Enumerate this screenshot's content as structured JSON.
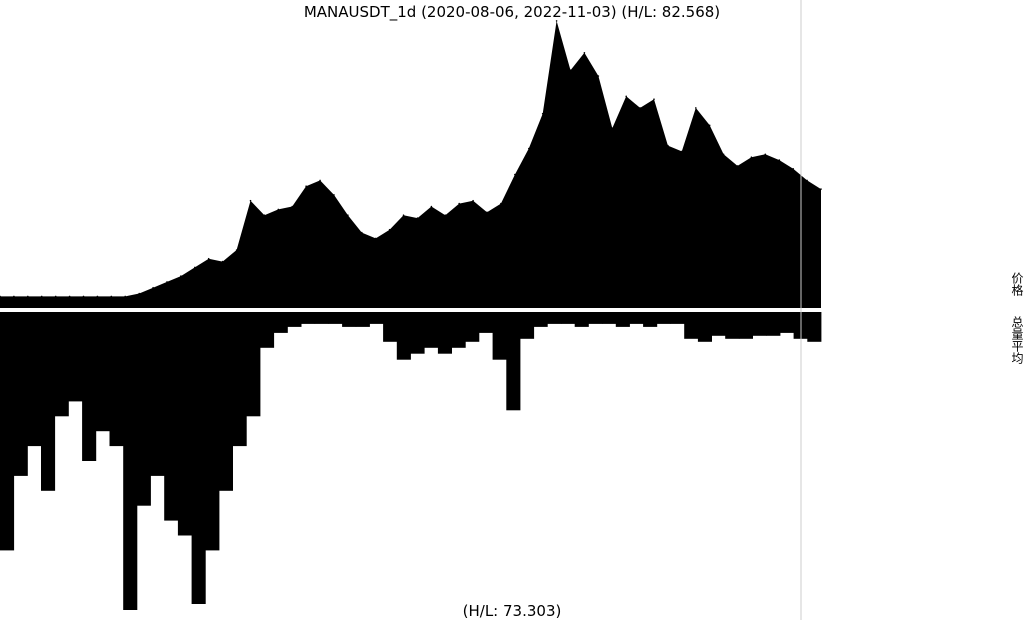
{
  "chart_data": [
    {
      "type": "area",
      "title": "MANAUSDT_1d (2020-08-06, 2022-11-03) (H/L: 82.568)",
      "x_range": [
        "2020-08-06",
        "2022-11-03"
      ],
      "xlabel": "",
      "ylabel": "",
      "grid": false,
      "legend": "none",
      "colors": {
        "fill": "#000000",
        "background": "#ffffff",
        "divider": "#cccccc"
      },
      "series": [
        {
          "values": [
            0.04,
            0.04,
            0.04,
            0.04,
            0.04,
            0.04,
            0.04,
            0.04,
            0.04,
            0.04,
            0.05,
            0.07,
            0.09,
            0.11,
            0.14,
            0.17,
            0.16,
            0.2,
            0.37,
            0.32,
            0.34,
            0.35,
            0.42,
            0.44,
            0.39,
            0.32,
            0.26,
            0.24,
            0.27,
            0.32,
            0.31,
            0.35,
            0.32,
            0.36,
            0.37,
            0.33,
            0.36,
            0.46,
            0.55,
            0.67,
            0.99,
            0.82,
            0.88,
            0.8,
            0.62,
            0.73,
            0.69,
            0.72,
            0.56,
            0.54,
            0.69,
            0.63,
            0.53,
            0.49,
            0.52,
            0.53,
            0.51,
            0.48,
            0.44,
            0.41
          ]
        }
      ]
    },
    {
      "type": "bar",
      "title": "(H/L: 73.303)",
      "xlabel": "",
      "ylabel": "",
      "grid": false,
      "orientation": "inverted",
      "series": [
        {
          "values": [
            0.8,
            0.55,
            0.45,
            0.6,
            0.35,
            0.3,
            0.5,
            0.4,
            0.45,
            1.0,
            0.65,
            0.55,
            0.7,
            0.75,
            0.98,
            0.8,
            0.6,
            0.45,
            0.35,
            0.12,
            0.07,
            0.05,
            0.04,
            0.04,
            0.04,
            0.05,
            0.05,
            0.04,
            0.1,
            0.16,
            0.14,
            0.12,
            0.14,
            0.12,
            0.1,
            0.07,
            0.16,
            0.33,
            0.09,
            0.05,
            0.04,
            0.04,
            0.05,
            0.04,
            0.04,
            0.05,
            0.04,
            0.05,
            0.04,
            0.04,
            0.09,
            0.1,
            0.08,
            0.09,
            0.09,
            0.08,
            0.08,
            0.07,
            0.09,
            0.1
          ]
        }
      ]
    }
  ],
  "side_labels": [
    "价格",
    "总量平均"
  ]
}
